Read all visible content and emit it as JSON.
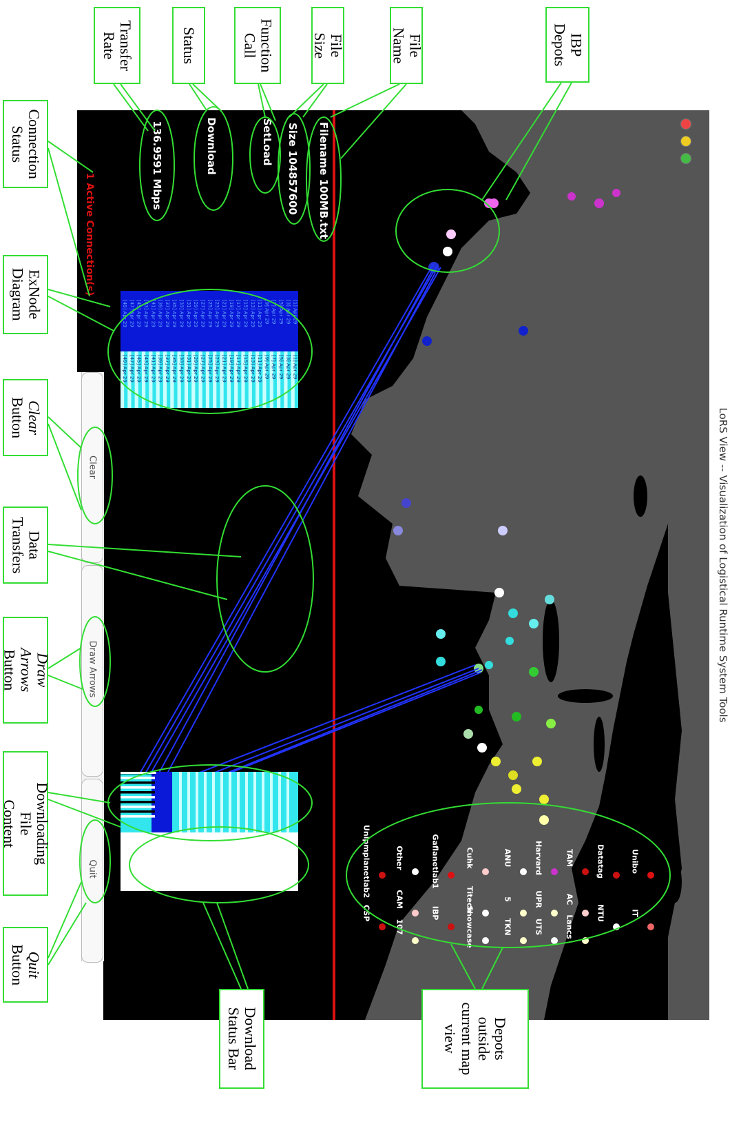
{
  "window": {
    "title": "LoRS View -- Visualization of Logistical Runtime System Tools"
  },
  "info": {
    "filename": "Filename 100MB.txt",
    "size": "Size 104857600",
    "function_call": "SetLoad",
    "status": "Download",
    "rate": "136.9591 Mbps",
    "connection": "1 Active Connection(s)"
  },
  "buttons": {
    "clear": "Clear",
    "draw_arrows": "Draw Arrows",
    "quit": "Quit"
  },
  "depot_legend": [
    {
      "label": "Unibo",
      "color": "#dd1111"
    },
    {
      "label": "IT",
      "color": "#ee6666"
    },
    {
      "label": "Datatag",
      "color": "#cc1111"
    },
    {
      "label": "NTU",
      "color": "#ffffff"
    },
    {
      "label": "TAM",
      "color": "#cc1111"
    },
    {
      "label": "AC",
      "color": "#ffcccc"
    },
    {
      "label": "Lancs",
      "color": "#ffffcc"
    },
    {
      "label": "Harvard",
      "color": "#cc33cc"
    },
    {
      "label": "UPR",
      "color": "#ffffcc"
    },
    {
      "label": "UTS",
      "color": "#ffffff"
    },
    {
      "label": "ANU",
      "color": "#ffffff"
    },
    {
      "label": "5",
      "color": "#ffffcc"
    },
    {
      "label": "TKN",
      "color": "#ffffcc"
    },
    {
      "label": "Cuhk",
      "color": "#ffcccc"
    },
    {
      "label": "Titech",
      "color": "#ffffff"
    },
    {
      "label": "Showcase",
      "color": "#ffffff"
    },
    {
      "label": "Gaflanetlab1",
      "color": "#dd1111"
    },
    {
      "label": "IBP",
      "color": "#cc1111"
    },
    {
      "label": "Other",
      "color": "#ffffff"
    },
    {
      "label": "CAM",
      "color": "#ffcccc"
    },
    {
      "label": "107",
      "color": "#ffffcc"
    },
    {
      "label": "Unipmplanetlab2",
      "color": "#cc1111"
    },
    {
      "label": "CSP",
      "color": "#cc1111"
    }
  ],
  "exnode": {
    "rows": [
      [
        "[1] Apr 29",
        "[1] Apr 29"
      ],
      [
        "[3] Apr 29",
        "[3] Apr 29"
      ],
      [
        "[5] Apr 29",
        "[5] Apr 29"
      ],
      [
        "[7] Apr 29",
        "[7] Apr 29"
      ],
      [
        "[9] Apr 29",
        "[9] Apr 29"
      ],
      [
        "[11] Apr 29",
        "[11] Apr 29"
      ],
      [
        "[13] Apr 29",
        "[13] Apr 29"
      ],
      [
        "[15] Apr 29",
        "[15] Apr 29"
      ],
      [
        "[17] Apr 29",
        "[17] Apr 29"
      ],
      [
        "[19] Apr 29",
        "[19] Apr 29"
      ],
      [
        "[21] Apr 29",
        "[21] Apr 29"
      ],
      [
        "[23] Apr 29",
        "[23] Apr 29"
      ],
      [
        "[25] Apr 29",
        "[25] Apr 29"
      ],
      [
        "[27] Apr 29",
        "[27] Apr 29"
      ],
      [
        "[29] Apr 29",
        "[29] Apr 29"
      ],
      [
        "[31] Apr 29",
        "[31] Apr 29"
      ],
      [
        "[33] Apr 29",
        "[33] Apr 29"
      ],
      [
        "[35] Apr 29",
        "[35] Apr 29"
      ],
      [
        "[37] Apr 29",
        "[37] Apr 29"
      ],
      [
        "[39] Apr 29",
        "[39] Apr 29"
      ],
      [
        "[41] Apr 29",
        "[41] Apr 29"
      ],
      [
        "[43] Apr 29",
        "[43] Apr 29"
      ],
      [
        "[45] Apr 29",
        "[45] Apr 29"
      ],
      [
        "[47] Apr 29",
        "[47] Apr 29"
      ],
      [
        "[49] Apr 29",
        "[49] Apr 29"
      ]
    ]
  },
  "download": {
    "progress": 0.2
  },
  "colors": {
    "map_bg": "#000000",
    "land": "#555555",
    "accent": "#dd1111",
    "arrow": "#2233ff",
    "callout": "#33dd33"
  },
  "callouts": [
    {
      "id": "ibp-depots",
      "text": "IBP\nDepots"
    },
    {
      "id": "file-name",
      "text": "File Name"
    },
    {
      "id": "file-size",
      "text": "File Size"
    },
    {
      "id": "function-call",
      "text": "Function\nCall"
    },
    {
      "id": "status",
      "text": "Status"
    },
    {
      "id": "transfer-rate",
      "text": "Transfer\nRate"
    },
    {
      "id": "connection-status",
      "text": "Connection\nStatus"
    },
    {
      "id": "exnode-diagram",
      "text": "ExNode\nDiagram"
    },
    {
      "id": "clear-button",
      "text": "Clear\nButton"
    },
    {
      "id": "data-transfers",
      "text": "Data\nTransfers"
    },
    {
      "id": "draw-arrows-button",
      "text": "Draw Arrows\nButton"
    },
    {
      "id": "downloading-file-content",
      "text": "Downloading File\nContent"
    },
    {
      "id": "quit-button",
      "text": "Quit\nButton"
    },
    {
      "id": "download-status-bar",
      "text": "Download\nStatus Bar"
    },
    {
      "id": "depots-outside",
      "text": "Depots\noutside\ncurrent map\nview"
    }
  ]
}
